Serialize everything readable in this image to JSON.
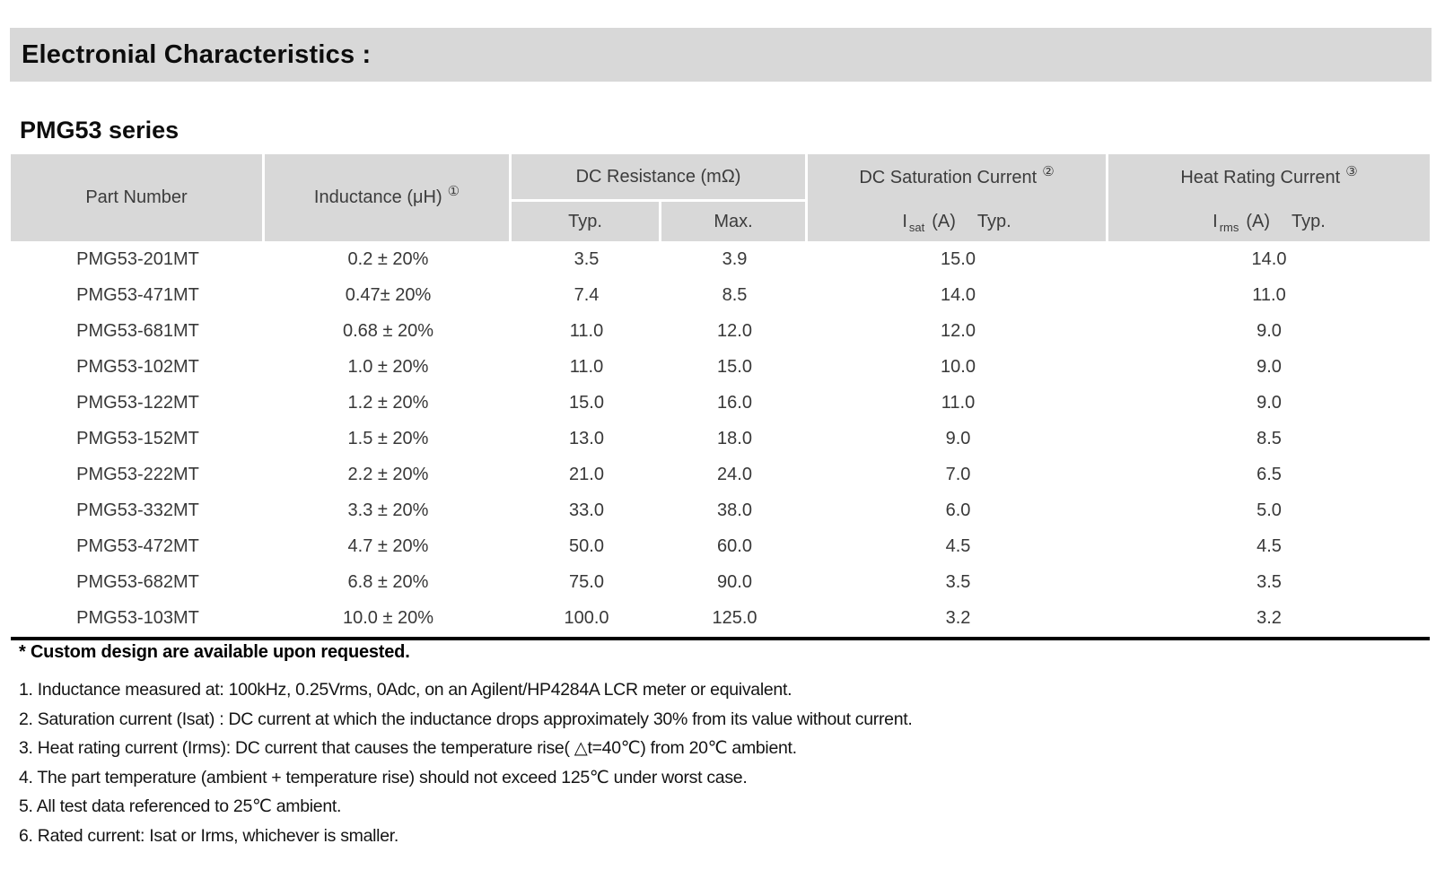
{
  "banner": {
    "title": "Electronial Characteristics :"
  },
  "section": {
    "title": "PMG53 series"
  },
  "colors": {
    "banner_bg": "#d8d8d8",
    "table_header_bg": "#d8d8d8",
    "rule": "#000000",
    "text": "#3c3c3c"
  },
  "table": {
    "header": {
      "part_number": "Part Number",
      "inductance_label": "Inductance (μH)",
      "inductance_ref": "①",
      "dc_resistance_label": "DC Resistance (mΩ)",
      "typ_label": "Typ.",
      "max_label": "Max.",
      "saturation_label": "DC Saturation Current",
      "saturation_ref": "②",
      "saturation_symbol": "I",
      "saturation_subscript": "sat",
      "saturation_unit": "(A)",
      "saturation_typ": "Typ.",
      "heat_label": "Heat Rating Current",
      "heat_ref": "③",
      "heat_symbol": "I",
      "heat_subscript": "rms",
      "heat_unit": "(A)",
      "heat_typ": "Typ."
    },
    "rows": [
      {
        "part": "PMG53-201MT",
        "inductance": "0.2 ± 20%",
        "typ": "3.5",
        "max": "3.9",
        "isat": "15.0",
        "irms": "14.0"
      },
      {
        "part": "PMG53-471MT",
        "inductance": "0.47± 20%",
        "typ": "7.4",
        "max": "8.5",
        "isat": "14.0",
        "irms": "11.0"
      },
      {
        "part": "PMG53-681MT",
        "inductance": "0.68 ± 20%",
        "typ": "11.0",
        "max": "12.0",
        "isat": "12.0",
        "irms": "9.0"
      },
      {
        "part": "PMG53-102MT",
        "inductance": "1.0 ± 20%",
        "typ": "11.0",
        "max": "15.0",
        "isat": "10.0",
        "irms": "9.0"
      },
      {
        "part": "PMG53-122MT",
        "inductance": "1.2 ± 20%",
        "typ": "15.0",
        "max": "16.0",
        "isat": "11.0",
        "irms": "9.0"
      },
      {
        "part": "PMG53-152MT",
        "inductance": "1.5 ± 20%",
        "typ": "13.0",
        "max": "18.0",
        "isat": "9.0",
        "irms": "8.5"
      },
      {
        "part": "PMG53-222MT",
        "inductance": "2.2 ± 20%",
        "typ": "21.0",
        "max": "24.0",
        "isat": "7.0",
        "irms": "6.5"
      },
      {
        "part": "PMG53-332MT",
        "inductance": "3.3 ± 20%",
        "typ": "33.0",
        "max": "38.0",
        "isat": "6.0",
        "irms": "5.0"
      },
      {
        "part": "PMG53-472MT",
        "inductance": "4.7 ± 20%",
        "typ": "50.0",
        "max": "60.0",
        "isat": "4.5",
        "irms": "4.5"
      },
      {
        "part": "PMG53-682MT",
        "inductance": "6.8 ± 20%",
        "typ": "75.0",
        "max": "90.0",
        "isat": "3.5",
        "irms": "3.5"
      },
      {
        "part": "PMG53-103MT",
        "inductance": "10.0 ± 20%",
        "typ": "100.0",
        "max": "125.0",
        "isat": "3.2",
        "irms": "3.2"
      }
    ]
  },
  "footnotes": {
    "custom": "* Custom design are available upon requested.",
    "notes": [
      "1. Inductance measured at: 100kHz, 0.25Vrms, 0Adc, on an Agilent/HP4284A LCR meter or equivalent.",
      "2. Saturation current (Isat) : DC current at which the inductance drops approximately 30% from its value without current.",
      "3. Heat rating current (Irms): DC current that causes the temperature rise( △t=40℃) from 20℃ ambient.",
      "4. The part temperature (ambient + temperature rise) should not exceed 125℃ under worst case.",
      "5. All test data referenced to 25℃ ambient.",
      "6. Rated current: Isat or Irms, whichever is smaller."
    ]
  }
}
